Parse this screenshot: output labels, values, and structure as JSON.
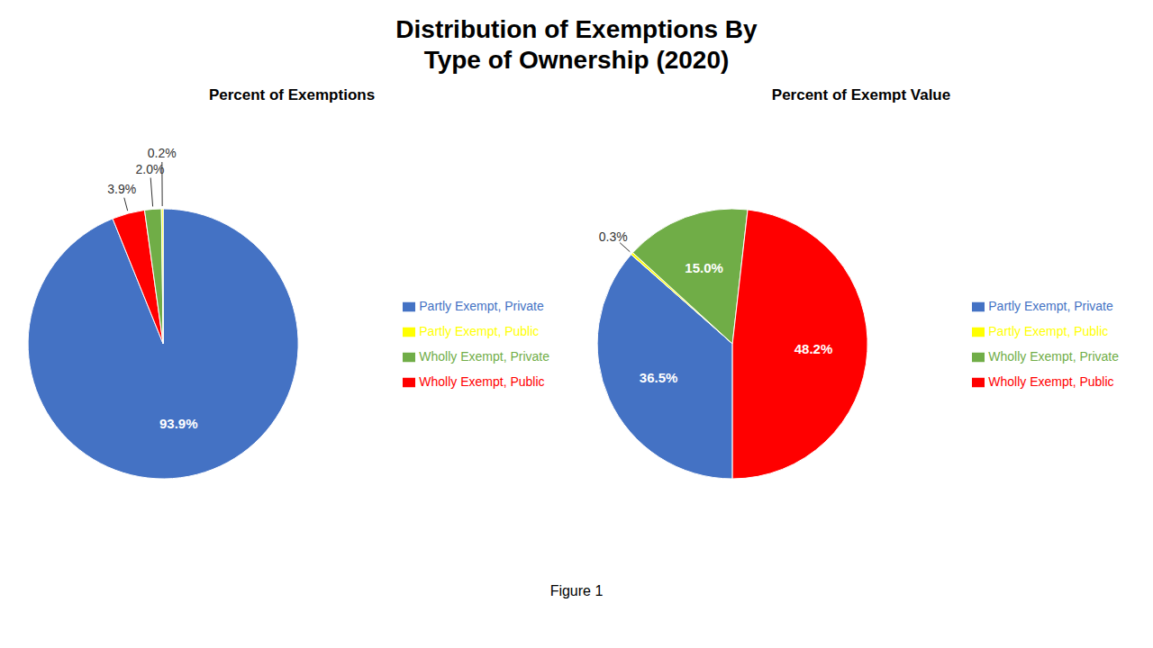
{
  "title": "Distribution of Exemptions By\nType of Ownership (2020)",
  "annotations": [
    "Figure 1"
  ],
  "chart_data": [
    {
      "type": "pie",
      "title": "Percent of Exemptions",
      "categories": [
        "Partly Exempt, Private",
        "Wholly Exempt, Public",
        "Wholly Exempt, Private",
        "Partly Exempt, Public"
      ],
      "values": [
        93.9,
        3.9,
        2.0,
        0.2
      ],
      "value_labels": [
        "93.9%",
        "3.9%",
        "2.0%",
        "0.2%"
      ],
      "colors": [
        "#4472C4",
        "#FF0000",
        "#70AD47",
        "#FFFF00"
      ],
      "data_labels": true,
      "legend": "right"
    },
    {
      "type": "pie",
      "title": "Percent of Exempt Value",
      "categories": [
        "Partly Exempt, Private",
        "Partly Exempt, Public",
        "Wholly Exempt, Private",
        "Wholly Exempt, Public"
      ],
      "values": [
        36.5,
        0.3,
        15.0,
        48.2
      ],
      "value_labels": [
        "36.5%",
        "0.3%",
        "15.0%",
        "48.2%"
      ],
      "colors": [
        "#4472C4",
        "#FFFF00",
        "#70AD47",
        "#FF0000"
      ],
      "data_labels": true,
      "legend": "right"
    }
  ]
}
